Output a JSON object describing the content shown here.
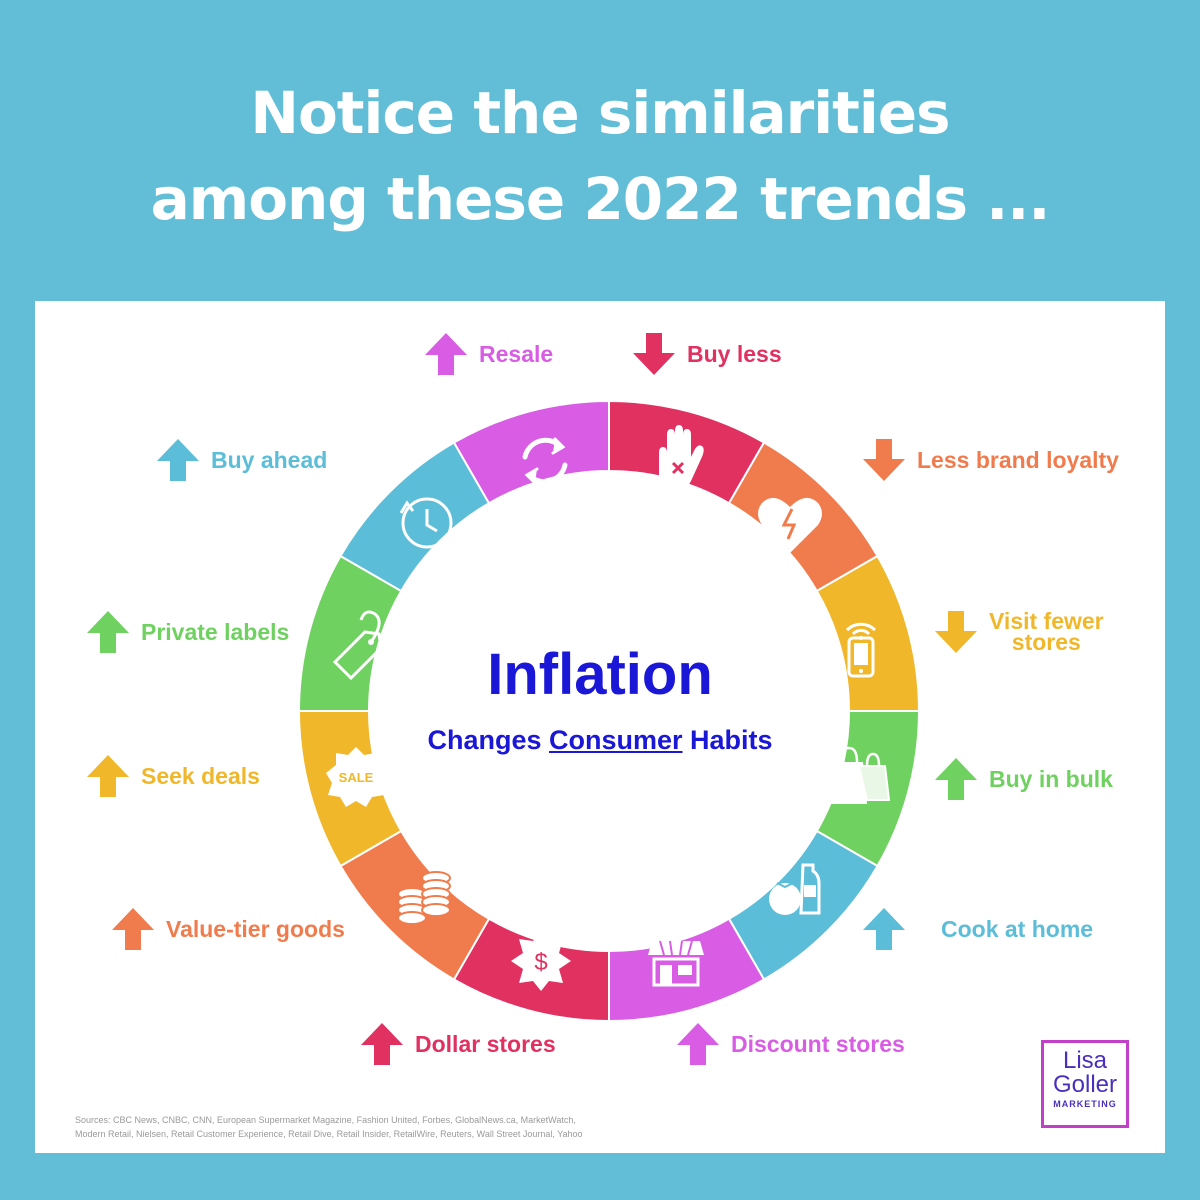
{
  "header": {
    "line1": "Notice the similarities",
    "line2": "among these 2022 trends ..."
  },
  "center": {
    "title": "Inflation",
    "sub_before": "Changes ",
    "sub_underlined": "Consumer",
    "sub_after": " Habits"
  },
  "labels": {
    "resale": "Resale",
    "buy_less": "Buy less",
    "less_brand_loyalty": "Less brand loyalty",
    "visit_fewer_1": "Visit fewer",
    "visit_fewer_2": "stores",
    "buy_in_bulk": "Buy in bulk",
    "cook_at_home": "Cook at home",
    "discount_stores": "Discount stores",
    "dollar_stores": "Dollar stores",
    "value_tier": "Value-tier goods",
    "seek_deals": "Seek deals",
    "private_labels": "Private labels",
    "buy_ahead": "Buy ahead"
  },
  "icons": {
    "sale_text": "SALE",
    "dollar_text": "$"
  },
  "sources": {
    "line1": "Sources: CBC News, CNBC, CNN, European Supermarket Magazine, Fashion United, Forbes, GlobalNews.ca, MarketWatch,",
    "line2": "Modern Retail, Nielsen, Retail Customer Experience, Retail Dive, Retail Insider, RetailWire, Reuters, Wall Street Journal, Yahoo"
  },
  "logo": {
    "line1": "Lisa",
    "line2": "Goller",
    "line3": "MARKETING"
  },
  "colors": {
    "background": "#62bed6",
    "magenta": "#d85ce4",
    "red": "#e03161",
    "orange": "#f07c4e",
    "yellow": "#f0b72a",
    "green": "#6fd160",
    "blue": "#5bbdd8",
    "title_blue": "#1b17d6"
  }
}
